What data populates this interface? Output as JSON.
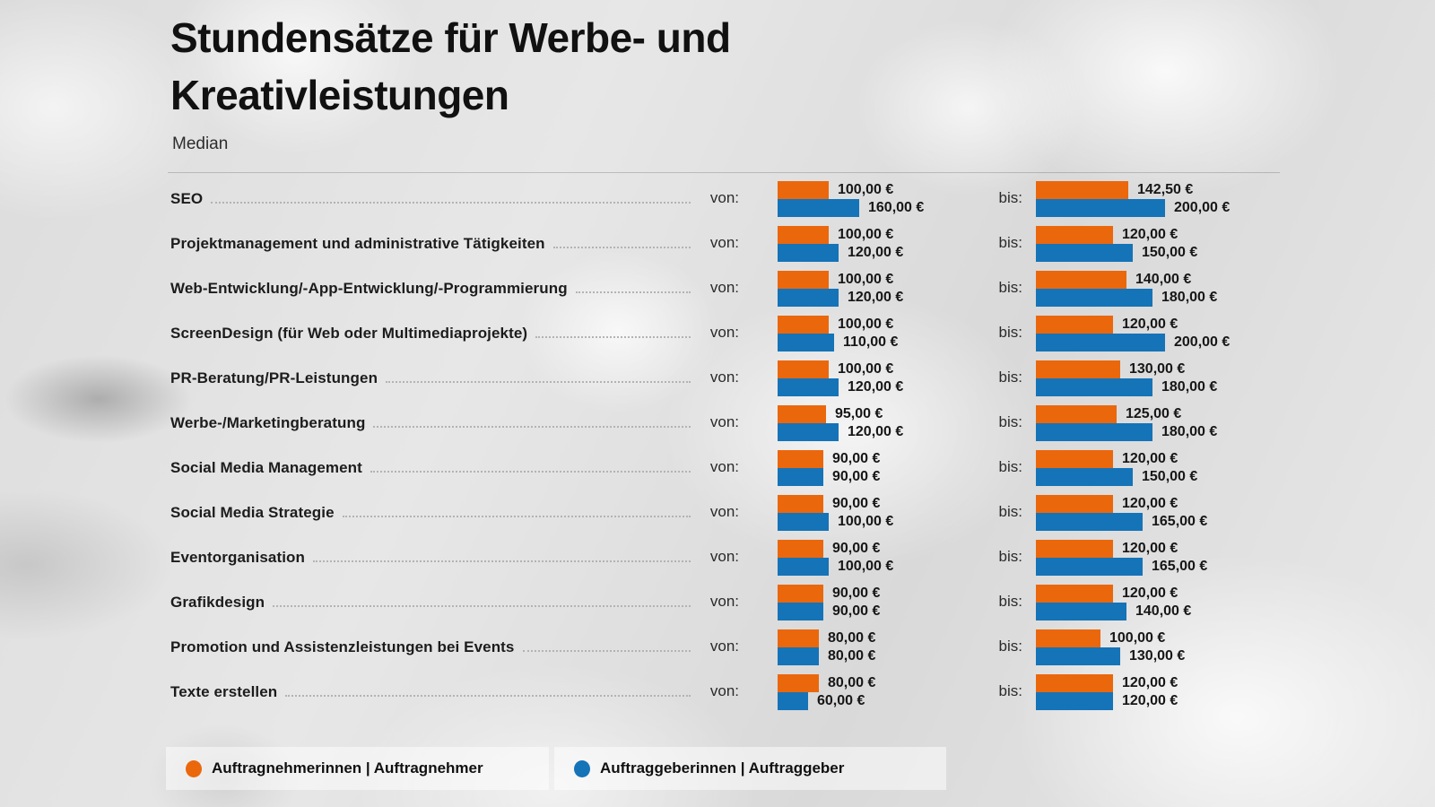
{
  "header": {
    "title_line1": "Stundensätze für Werbe- und",
    "title_line2": "Kreativleistungen",
    "subtitle": "Median"
  },
  "labels": {
    "von": "von:",
    "bis": "bis:"
  },
  "legend": [
    {
      "label": "Auftragnehmerinnen | Auftragnehmer",
      "color": "#EB670C"
    },
    {
      "label": "Auftraggeberinnen | Auftraggeber",
      "color": "#1573B8"
    }
  ],
  "chart_data": {
    "type": "bar",
    "title": "Stundensätze für Werbe- und Kreativleistungen",
    "subtitle": "Median",
    "unit": "EUR per hour",
    "value_suffix": " €",
    "decimal_separator": ",",
    "legend_position": "bottom",
    "grid": false,
    "series": [
      "Auftragnehmerinnen | Auftragnehmer",
      "Auftraggeberinnen | Auftraggeber"
    ],
    "colors": {
      "contractor": "#EB670C",
      "client": "#1573B8"
    },
    "group_labels": [
      "von:",
      "bis:"
    ],
    "rows": [
      {
        "label": "SEO",
        "von": [
          100.0,
          160.0
        ],
        "bis": [
          142.5,
          200.0
        ]
      },
      {
        "label": "Projektmanagement und administrative Tätigkeiten",
        "von": [
          100.0,
          120.0
        ],
        "bis": [
          120.0,
          150.0
        ]
      },
      {
        "label": "Web-Entwicklung/-App-Entwicklung/-Programmierung",
        "von": [
          100.0,
          120.0
        ],
        "bis": [
          140.0,
          180.0
        ]
      },
      {
        "label": "ScreenDesign (für Web oder Multimediaprojekte)",
        "von": [
          100.0,
          110.0
        ],
        "bis": [
          120.0,
          200.0
        ]
      },
      {
        "label": "PR-Beratung/PR-Leistungen",
        "von": [
          100.0,
          120.0
        ],
        "bis": [
          130.0,
          180.0
        ]
      },
      {
        "label": "Werbe-/Marketingberatung",
        "von": [
          95.0,
          120.0
        ],
        "bis": [
          125.0,
          180.0
        ]
      },
      {
        "label": "Social Media Management",
        "von": [
          90.0,
          90.0
        ],
        "bis": [
          120.0,
          150.0
        ]
      },
      {
        "label": "Social Media Strategie",
        "von": [
          90.0,
          100.0
        ],
        "bis": [
          120.0,
          165.0
        ]
      },
      {
        "label": "Eventorganisation",
        "von": [
          90.0,
          100.0
        ],
        "bis": [
          120.0,
          165.0
        ]
      },
      {
        "label": "Grafikdesign",
        "von": [
          90.0,
          90.0
        ],
        "bis": [
          120.0,
          140.0
        ]
      },
      {
        "label": "Promotion und Assistenzleistungen bei Events",
        "von": [
          80.0,
          80.0
        ],
        "bis": [
          100.0,
          130.0
        ]
      },
      {
        "label": "Texte erstellen",
        "von": [
          80.0,
          60.0
        ],
        "bis": [
          120.0,
          120.0
        ]
      }
    ]
  }
}
